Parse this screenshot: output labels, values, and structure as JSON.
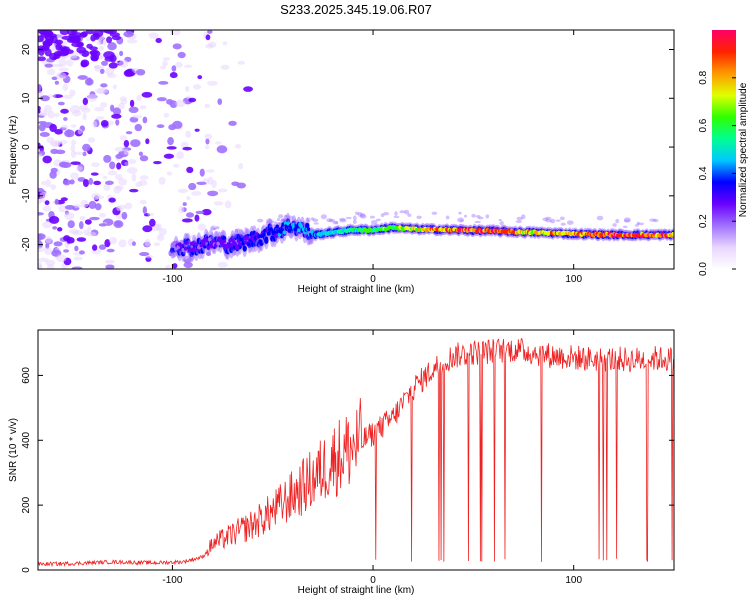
{
  "title": "S233.2025.345.19.06.R07",
  "chart_data": [
    {
      "type": "heatmap",
      "name": "spectrogram",
      "xlabel": "Height of straight line (km)",
      "ylabel": "Frequency (Hz)",
      "xlim": [
        -167,
        150
      ],
      "ylim": [
        -25,
        24
      ],
      "xticks": [
        -100,
        0,
        100
      ],
      "xtick_labels": [
        "-100",
        "0",
        "100"
      ],
      "yticks": [
        -20,
        -10,
        0,
        10,
        20
      ],
      "ytick_labels": [
        "-20",
        "-10",
        "0",
        "10",
        "20"
      ],
      "colorbar": {
        "label": "Normalized spectral amplitude",
        "range": [
          0,
          1
        ],
        "ticks": [
          0.0,
          0.2,
          0.4,
          0.6,
          0.8
        ],
        "tick_labels": [
          "0.0",
          "0.2",
          "0.4",
          "0.6",
          "0.8"
        ],
        "colormap": [
          "#ffffff",
          "#e8d5ff",
          "#a070ff",
          "#6a00ff",
          "#0000ff",
          "#00c8ff",
          "#00ff90",
          "#30ff00",
          "#e0ff00",
          "#ff9900",
          "#ff2200",
          "#ff0066"
        ]
      },
      "noise_region_x": [
        -167,
        -80
      ],
      "noise_region_y": [
        -25,
        24
      ],
      "signal_trace": {
        "x": [
          -100,
          -90,
          -80,
          -70,
          -60,
          -50,
          -40,
          -30,
          -20,
          -10,
          0,
          10,
          20,
          40,
          60,
          80,
          100,
          120,
          150
        ],
        "frequency": [
          -20,
          -20.5,
          -19.5,
          -20,
          -19,
          -17.5,
          -16,
          -18,
          -17.5,
          -17,
          -17,
          -16.5,
          -16.8,
          -17,
          -17.2,
          -17.5,
          -17.8,
          -18,
          -18
        ],
        "amplitude": [
          0.2,
          0.25,
          0.25,
          0.3,
          0.3,
          0.35,
          0.4,
          0.45,
          0.5,
          0.55,
          0.6,
          0.65,
          0.7,
          0.85,
          0.9,
          0.75,
          0.8,
          0.9,
          0.85
        ]
      }
    },
    {
      "type": "line",
      "name": "snr",
      "xlabel": "Height of straight line (km)",
      "ylabel": "SNR (10 * v/v)",
      "xlim": [
        -167,
        150
      ],
      "ylim": [
        0,
        740
      ],
      "xticks": [
        -100,
        0,
        100
      ],
      "xtick_labels": [
        "-100",
        "0",
        "100"
      ],
      "yticks": [
        0,
        200,
        400,
        600
      ],
      "ytick_labels": [
        "0",
        "200",
        "400",
        "600"
      ],
      "line_color": "#ee2222",
      "series": [
        {
          "name": "SNR",
          "x": [
            -167,
            -150,
            -130,
            -110,
            -95,
            -85,
            -80,
            -70,
            -60,
            -50,
            -40,
            -30,
            -20,
            -10,
            0,
            10,
            20,
            30,
            40,
            50,
            60,
            70,
            80,
            90,
            100,
            110,
            120,
            130,
            140,
            150
          ],
          "values": [
            18,
            20,
            25,
            22,
            25,
            40,
            80,
            110,
            140,
            180,
            230,
            280,
            340,
            380,
            420,
            470,
            560,
            620,
            660,
            670,
            675,
            680,
            670,
            660,
            655,
            650,
            650,
            648,
            652,
            650
          ]
        }
      ],
      "dropouts_from_x": 0,
      "dropout_floor": 25
    }
  ]
}
